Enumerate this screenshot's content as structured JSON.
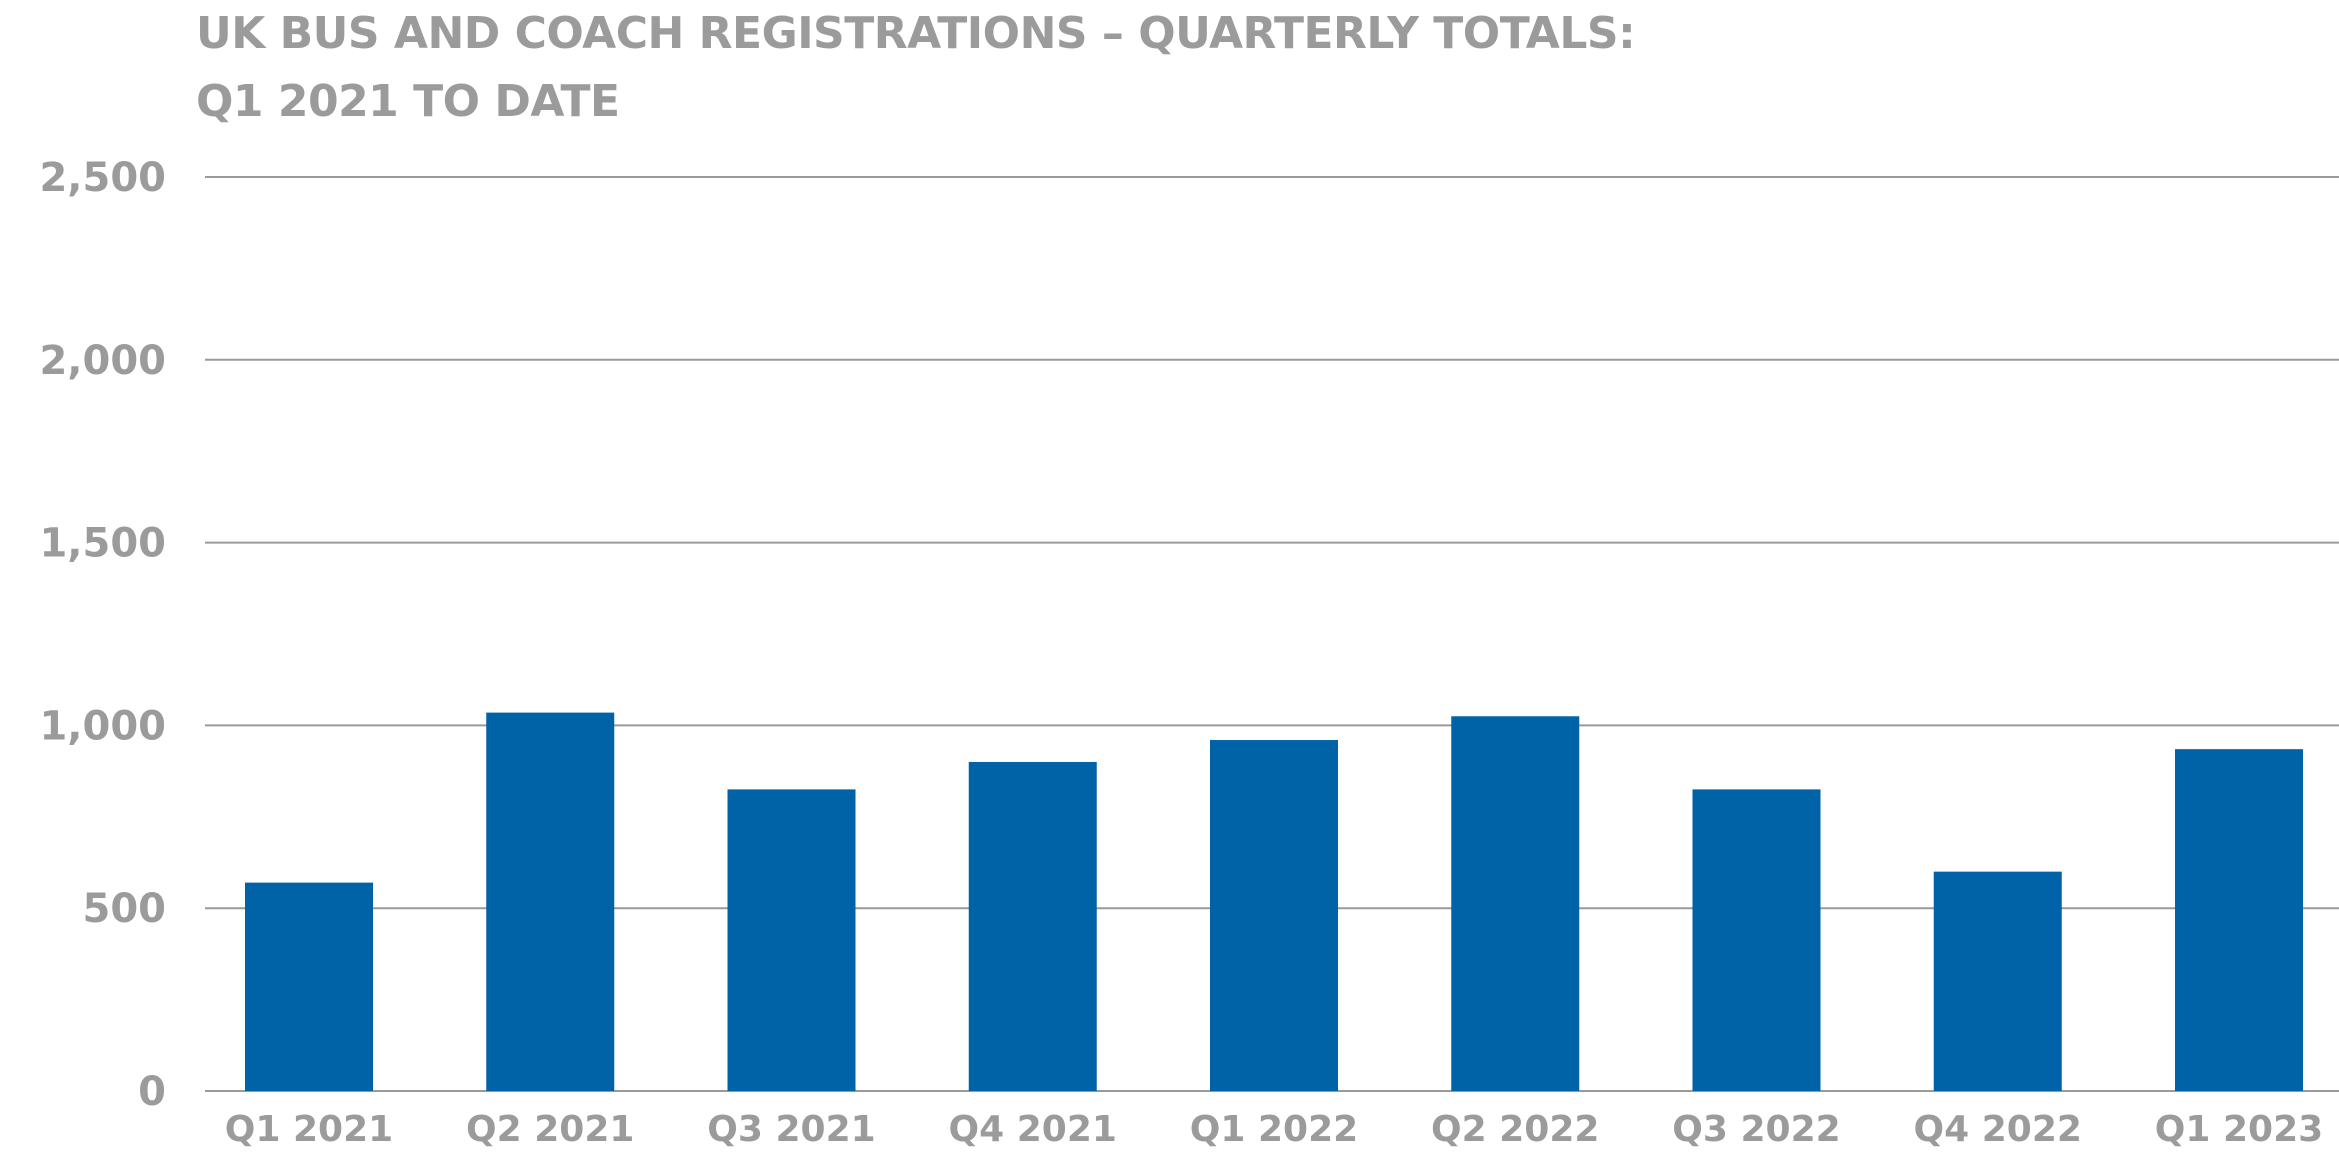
{
  "chart_data": {
    "type": "bar",
    "title_lines": [
      "UK BUS AND COACH REGISTRATIONS – QUARTERLY TOTALS:",
      "Q1 2021 TO DATE"
    ],
    "xlabel": "",
    "ylabel": "",
    "categories": [
      "Q1 2021",
      "Q2 2021",
      "Q3 2021",
      "Q4 2021",
      "Q1 2022",
      "Q2 2022",
      "Q3 2022",
      "Q4 2022",
      "Q1 2023"
    ],
    "values": [
      570,
      1035,
      825,
      900,
      960,
      1025,
      825,
      600,
      935
    ],
    "ylim": [
      0,
      2500
    ],
    "yticks": [
      0,
      500,
      1000,
      1500,
      2000,
      2500
    ],
    "ytick_labels": [
      "0",
      "500",
      "1,000",
      "1,500",
      "2,000",
      "2,500"
    ],
    "grid": true,
    "legend": "none",
    "colors": {
      "bar": "#0063a8",
      "grid": "#9a9a9a",
      "text": "#9b9b9b"
    }
  }
}
